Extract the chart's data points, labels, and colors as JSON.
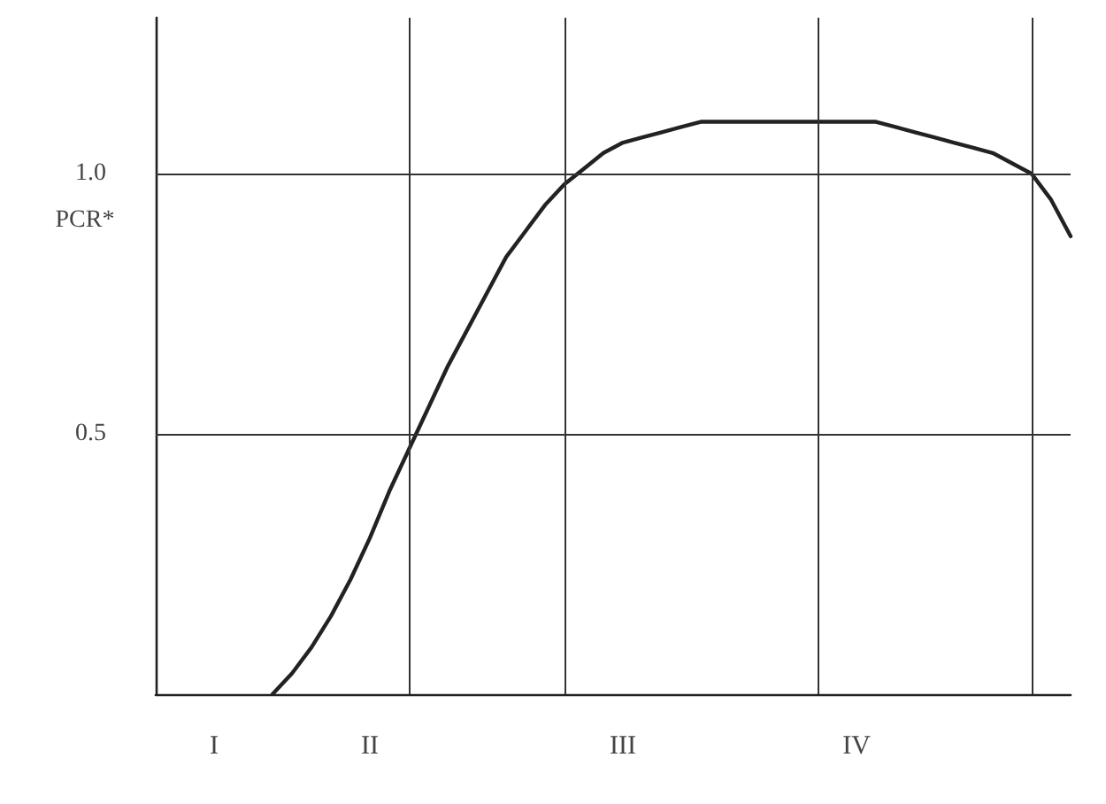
{
  "chart_data": {
    "type": "line",
    "ylabel": "PCR*",
    "categories": [
      null,
      null,
      null,
      "I",
      null,
      null,
      null,
      null,
      null,
      null,
      null,
      "II",
      null,
      null,
      null,
      null,
      null,
      null,
      null,
      null,
      null,
      null,
      null,
      null,
      "III",
      null,
      null,
      null,
      null,
      null,
      null,
      null,
      null,
      null,
      null,
      null,
      "IV",
      null,
      null,
      null,
      null,
      null,
      null,
      null,
      null,
      null,
      null,
      null
    ],
    "series": [
      {
        "color": "#222222",
        "values": [
          null,
          null,
          null,
          null,
          null,
          null,
          0,
          0.04,
          0.09,
          0.15,
          0.22,
          0.3,
          0.39,
          0.47,
          0.55,
          0.63,
          0.7,
          0.77,
          0.84,
          0.89,
          0.94,
          0.98,
          1.01,
          1.04,
          1.06,
          1.07,
          1.08,
          1.09,
          1.1,
          1.1,
          1.1,
          1.1,
          1.1,
          1.1,
          1.1,
          1.1,
          1.1,
          1.1,
          1.09,
          1.08,
          1.07,
          1.06,
          1.05,
          1.04,
          1.02,
          1.0,
          0.95,
          0.88
        ]
      }
    ],
    "ylim": [
      0,
      1.3
    ],
    "yticks": [
      {
        "value": 0.5,
        "label": "0.5"
      },
      {
        "value": 1,
        "label": "1.0"
      }
    ],
    "marker": "none",
    "line_style": "solid",
    "ref_lines": [
      {
        "axis": "y",
        "value": 1.0
      },
      {
        "axis": "y",
        "value": 0.5
      }
    ]
  }
}
